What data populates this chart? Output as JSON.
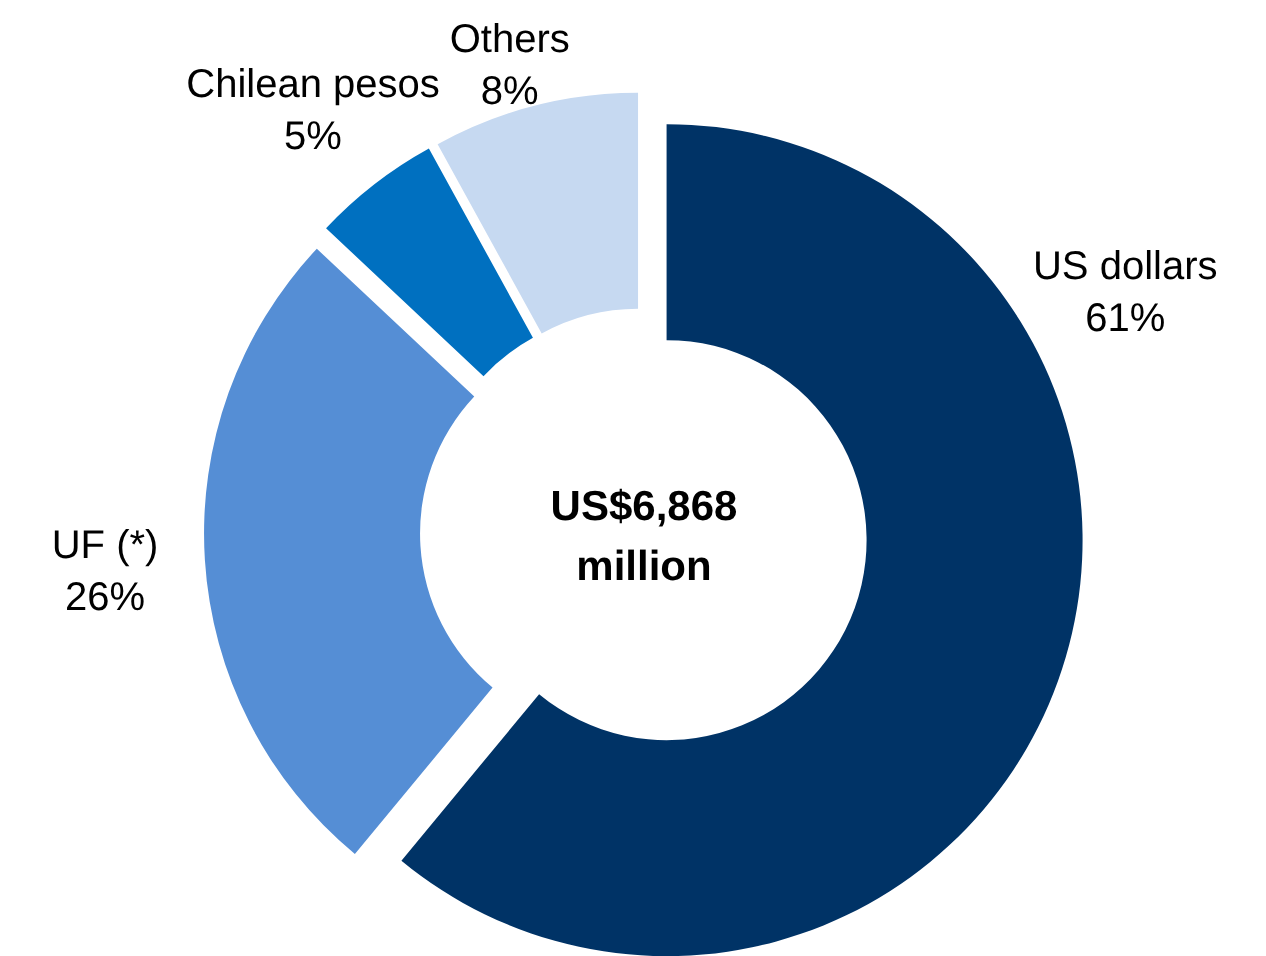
{
  "chart_data": {
    "type": "donut",
    "categories": [
      "US dollars",
      "UF (*)",
      "Chilean pesos",
      "Others"
    ],
    "values": [
      61,
      26,
      5,
      8
    ],
    "value_labels": [
      "61%",
      "26%",
      "5%",
      "8%"
    ],
    "colors": [
      "#003366",
      "#558ed5",
      "#0070c0",
      "#c6d9f1"
    ],
    "annotations": [
      "US$6,868 million"
    ]
  }
}
